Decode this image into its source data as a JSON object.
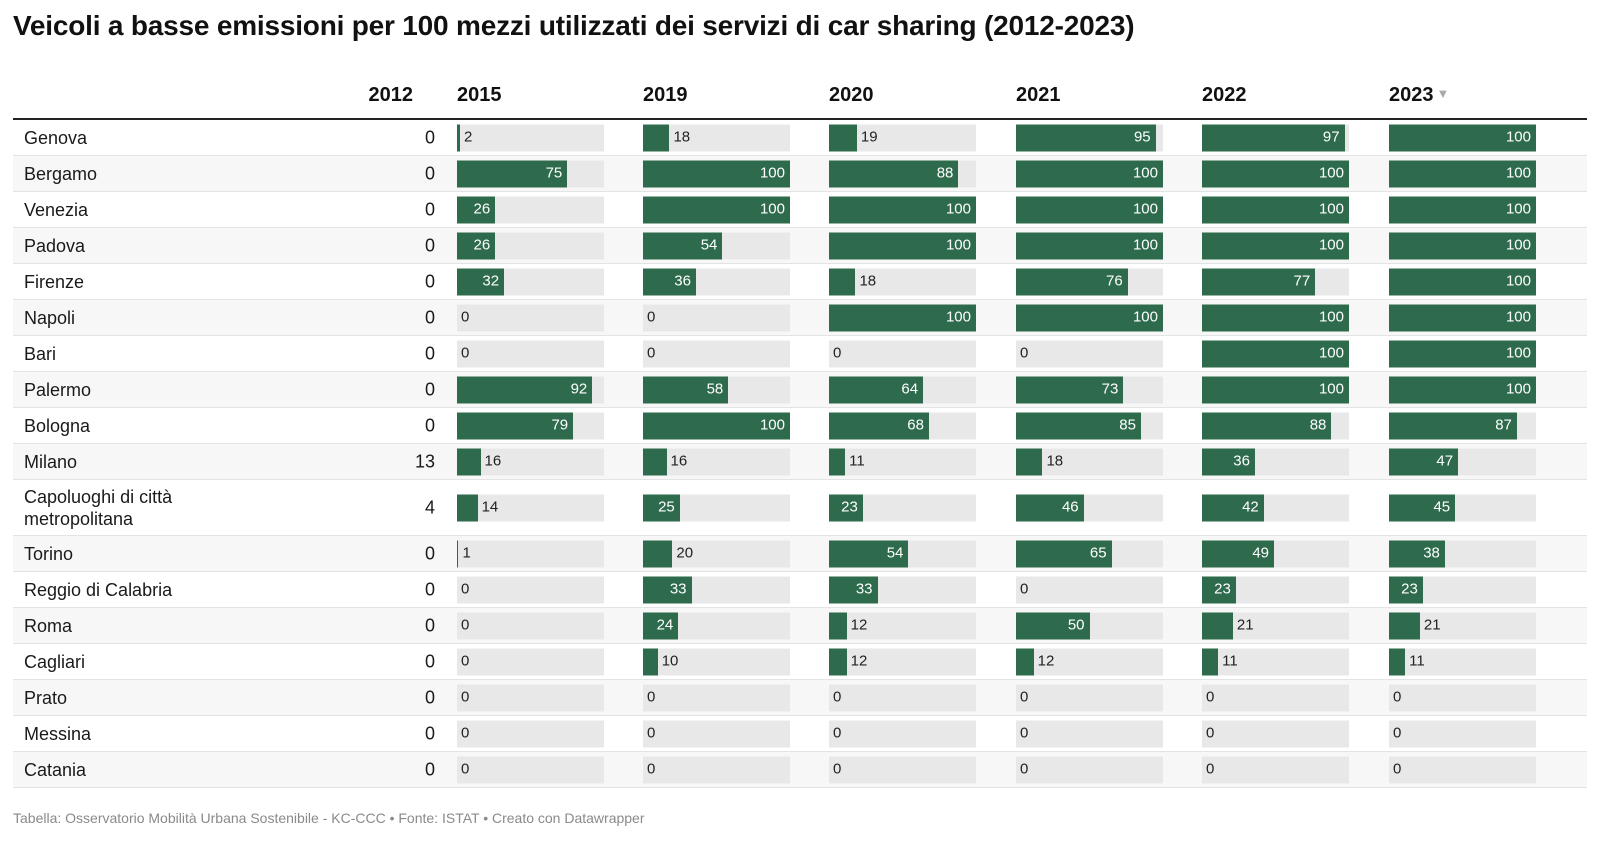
{
  "title": "Veicoli a basse emissioni per 100 mezzi utilizzati dei servizi di car sharing (2012-2023)",
  "footer": "Tabella: Osservatorio Mobilità Urbana Sostenibile - KC-CCC • Fonte: ISTAT • Creato con Datawrapper",
  "colors": {
    "bar": "#2e6b4c",
    "track": "#e8e8e8"
  },
  "sort_icon": "sort-desc-icon",
  "chart_data": {
    "type": "table",
    "title": "Veicoli a basse emissioni per 100 mezzi utilizzati dei servizi di car sharing (2012-2023)",
    "number_column": "2012",
    "bar_columns": [
      "2015",
      "2019",
      "2020",
      "2021",
      "2022",
      "2023"
    ],
    "bar_max": 100,
    "sorted_by": "2023",
    "rows": [
      {
        "city": "Genova",
        "v2012": "0",
        "bars": [
          2,
          18,
          19,
          95,
          97,
          100
        ]
      },
      {
        "city": "Bergamo",
        "v2012": "0",
        "bars": [
          75,
          100,
          88,
          100,
          100,
          100
        ]
      },
      {
        "city": "Venezia",
        "v2012": "0",
        "bars": [
          26,
          100,
          100,
          100,
          100,
          100
        ]
      },
      {
        "city": "Padova",
        "v2012": "0",
        "bars": [
          26,
          54,
          100,
          100,
          100,
          100
        ]
      },
      {
        "city": "Firenze",
        "v2012": "0",
        "bars": [
          32,
          36,
          18,
          76,
          77,
          100
        ]
      },
      {
        "city": "Napoli",
        "v2012": "0",
        "bars": [
          0,
          0,
          100,
          100,
          100,
          100
        ]
      },
      {
        "city": "Bari",
        "v2012": "0",
        "bars": [
          0,
          0,
          0,
          0,
          100,
          100
        ]
      },
      {
        "city": "Palermo",
        "v2012": "0",
        "bars": [
          92,
          58,
          64,
          73,
          100,
          100
        ]
      },
      {
        "city": "Bologna",
        "v2012": "0",
        "bars": [
          79,
          100,
          68,
          85,
          88,
          87
        ]
      },
      {
        "city": "Milano",
        "v2012": "13",
        "bars": [
          16,
          16,
          11,
          18,
          36,
          47
        ]
      },
      {
        "city": "Capoluoghi di città metropolitana",
        "v2012": "4",
        "bars": [
          14,
          25,
          23,
          46,
          42,
          45
        ]
      },
      {
        "city": "Torino",
        "v2012": "0",
        "bars": [
          1,
          20,
          54,
          65,
          49,
          38
        ]
      },
      {
        "city": "Reggio di Calabria",
        "v2012": "0",
        "bars": [
          0,
          33,
          33,
          0,
          23,
          23
        ]
      },
      {
        "city": "Roma",
        "v2012": "0",
        "bars": [
          0,
          24,
          12,
          50,
          21,
          21
        ]
      },
      {
        "city": "Cagliari",
        "v2012": "0",
        "bars": [
          0,
          10,
          12,
          12,
          11,
          11
        ]
      },
      {
        "city": "Prato",
        "v2012": "0",
        "bars": [
          0,
          0,
          0,
          0,
          0,
          0
        ]
      },
      {
        "city": "Messina",
        "v2012": "0",
        "bars": [
          0,
          0,
          0,
          0,
          0,
          0
        ]
      },
      {
        "city": "Catania",
        "v2012": "0",
        "bars": [
          0,
          0,
          0,
          0,
          0,
          0
        ]
      }
    ]
  }
}
